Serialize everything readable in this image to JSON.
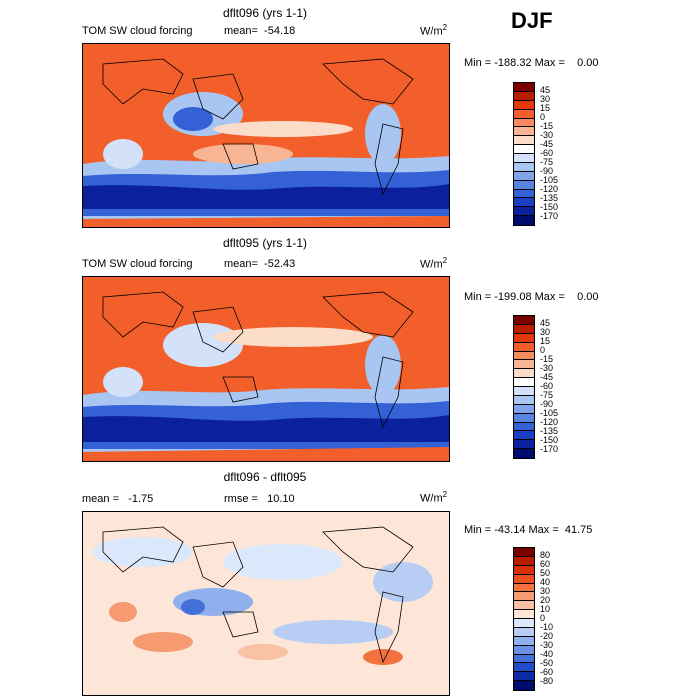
{
  "season": "DJF",
  "panels": [
    {
      "title": "dflt096 (yrs 1-1)",
      "variable": "TOM SW cloud forcing",
      "stat1": "mean=  -54.18",
      "stat2": "",
      "units_base": "W/m",
      "units_exp": "2",
      "minmax": "Min = -188.32 Max =    0.00",
      "levels": [
        "45",
        "30",
        "15",
        "0",
        "-15",
        "-30",
        "-45",
        "-60",
        "-75",
        "-90",
        "-105",
        "-120",
        "-135",
        "-150",
        "-170"
      ],
      "colors": [
        "#7a0000",
        "#b81d00",
        "#e3370c",
        "#f25f2a",
        "#f58c5f",
        "#f8b593",
        "#fbdcc8",
        "#ffffff",
        "#d3e2f8",
        "#a9c5f2",
        "#7fa4ea",
        "#5a84e1",
        "#3561d6",
        "#1a3fc0",
        "#0a209c",
        "#000b6e"
      ]
    },
    {
      "title": "dflt095 (yrs 1-1)",
      "variable": "TOM SW cloud forcing",
      "stat1": "mean=  -52.43",
      "stat2": "",
      "units_base": "W/m",
      "units_exp": "2",
      "minmax": "Min = -199.08 Max =    0.00",
      "levels": [
        "45",
        "30",
        "15",
        "0",
        "-15",
        "-30",
        "-45",
        "-60",
        "-75",
        "-90",
        "-105",
        "-120",
        "-135",
        "-150",
        "-170"
      ],
      "colors": [
        "#7a0000",
        "#b81d00",
        "#e3370c",
        "#f25f2a",
        "#f58c5f",
        "#f8b593",
        "#fbdcc8",
        "#ffffff",
        "#d3e2f8",
        "#a9c5f2",
        "#7fa4ea",
        "#5a84e1",
        "#3561d6",
        "#1a3fc0",
        "#0a209c",
        "#000b6e"
      ]
    },
    {
      "title": "dflt096 - dflt095",
      "variable": "",
      "stat1": "mean =   -1.75",
      "stat2": "rmse =   10.10",
      "units_base": "W/m",
      "units_exp": "2",
      "minmax": "Min = -43.14 Max =  41.75",
      "levels": [
        "80",
        "60",
        "50",
        "40",
        "30",
        "20",
        "10",
        "0",
        "-10",
        "-20",
        "-30",
        "-40",
        "-50",
        "-60",
        "-80"
      ],
      "colors": [
        "#7a0000",
        "#b81d00",
        "#d9300a",
        "#ee4d1d",
        "#f3713f",
        "#f69a72",
        "#f9c2a5",
        "#fde6d8",
        "#dbe7fa",
        "#b7cdf4",
        "#8fb0ed",
        "#6990e4",
        "#4470da",
        "#224ec8",
        "#0b2aa4",
        "#000b6e"
      ]
    }
  ]
}
